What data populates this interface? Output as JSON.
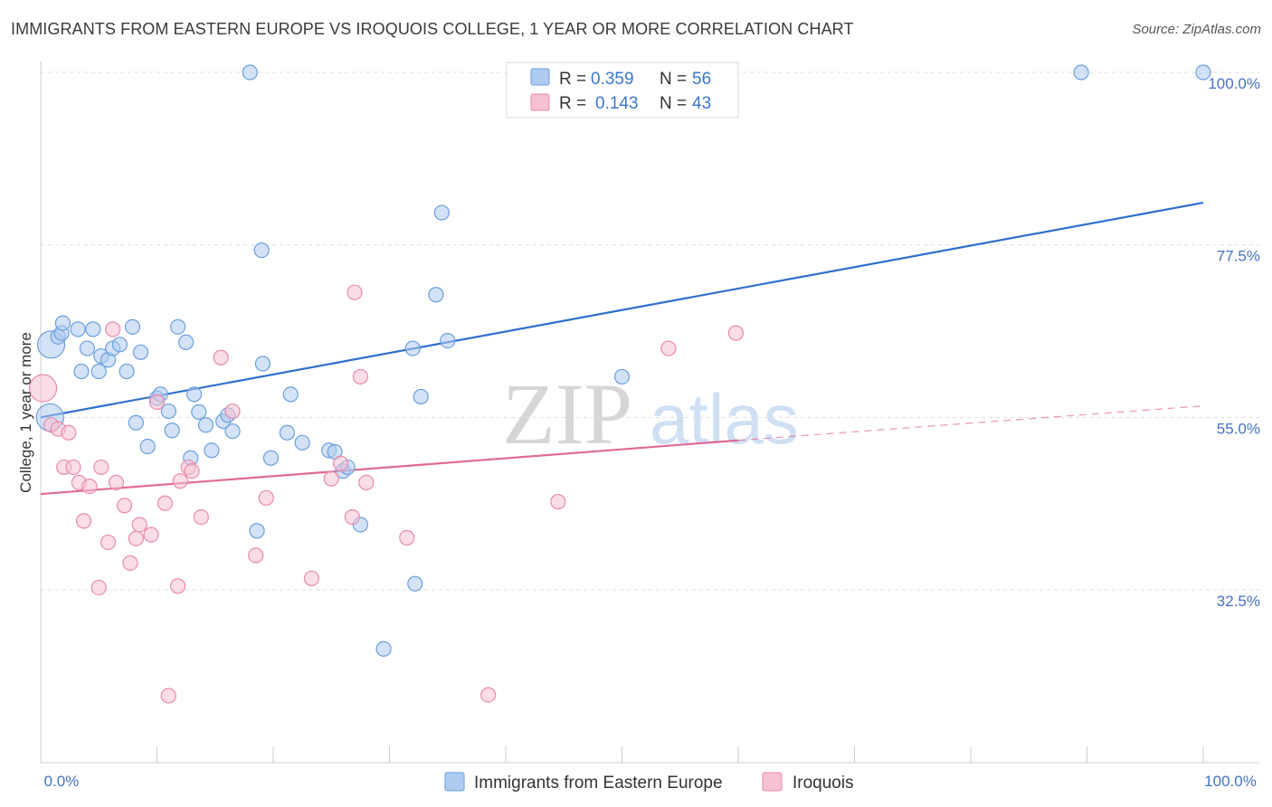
{
  "title": "IMMIGRANTS FROM EASTERN EUROPE VS IROQUOIS COLLEGE, 1 YEAR OR MORE CORRELATION CHART",
  "source": "Source: ZipAtlas.com",
  "watermark": {
    "zip": "ZIP",
    "atlas": "atlas"
  },
  "legend": {
    "r_label": "R =",
    "n_label": "N =",
    "series1": {
      "r": "0.359",
      "n": "56"
    },
    "series2": {
      "r": "0.143",
      "n": "43"
    }
  },
  "colors": {
    "blue_fill": "#aecbf0",
    "blue_stroke": "#6a9fdc",
    "blue_line": "#2f6fcc",
    "pink_fill": "#f6c1d2",
    "pink_stroke": "#e88aab",
    "pink_line": "#e06a96",
    "axis_text": "#4472c4"
  },
  "chart_data": {
    "type": "scatter",
    "title": "IMMIGRANTS FROM EASTERN EUROPE VS IROQUOIS COLLEGE, 1 YEAR OR MORE CORRELATION CHART",
    "xlabel": "",
    "ylabel": "College, 1 year or more",
    "xlim": [
      0,
      100
    ],
    "ylim": [
      12,
      102
    ],
    "x_tick_labels": [
      "0.0%",
      "100.0%"
    ],
    "y_ticks": [
      {
        "value": 32.5,
        "label": "32.5%"
      },
      {
        "value": 55.0,
        "label": "55.0%"
      },
      {
        "value": 77.5,
        "label": "77.5%"
      },
      {
        "value": 100.0,
        "label": "100.0%"
      }
    ],
    "series": [
      {
        "name": "Immigrants from Eastern Europe",
        "color": "#6a9fdc",
        "trend": {
          "x": [
            0,
            100
          ],
          "y": [
            55.0,
            83.0
          ],
          "dashed_after": null
        },
        "points": [
          {
            "x": 0.8,
            "y": 55.0,
            "big": true
          },
          {
            "x": 0.9,
            "y": 64.5,
            "big": true
          },
          {
            "x": 1.5,
            "y": 65.5
          },
          {
            "x": 1.8,
            "y": 66.0
          },
          {
            "x": 1.9,
            "y": 67.3
          },
          {
            "x": 3.2,
            "y": 66.5
          },
          {
            "x": 3.5,
            "y": 61.0
          },
          {
            "x": 4.0,
            "y": 64.0
          },
          {
            "x": 4.5,
            "y": 66.5
          },
          {
            "x": 5.0,
            "y": 61.0
          },
          {
            "x": 5.2,
            "y": 63.0
          },
          {
            "x": 5.8,
            "y": 62.5
          },
          {
            "x": 6.2,
            "y": 64.0
          },
          {
            "x": 6.8,
            "y": 64.5
          },
          {
            "x": 7.4,
            "y": 61.0
          },
          {
            "x": 7.9,
            "y": 66.8
          },
          {
            "x": 8.2,
            "y": 54.3
          },
          {
            "x": 8.6,
            "y": 63.5
          },
          {
            "x": 9.2,
            "y": 51.2
          },
          {
            "x": 10.0,
            "y": 57.5
          },
          {
            "x": 10.3,
            "y": 58.0
          },
          {
            "x": 11.0,
            "y": 55.8
          },
          {
            "x": 11.3,
            "y": 53.3
          },
          {
            "x": 11.8,
            "y": 66.8
          },
          {
            "x": 12.5,
            "y": 64.8
          },
          {
            "x": 12.9,
            "y": 49.7
          },
          {
            "x": 13.2,
            "y": 58.0
          },
          {
            "x": 13.6,
            "y": 55.7
          },
          {
            "x": 14.2,
            "y": 54.0
          },
          {
            "x": 14.7,
            "y": 50.7
          },
          {
            "x": 15.7,
            "y": 54.5
          },
          {
            "x": 16.1,
            "y": 55.3
          },
          {
            "x": 16.5,
            "y": 53.2
          },
          {
            "x": 18.0,
            "y": 100.0
          },
          {
            "x": 18.6,
            "y": 40.2
          },
          {
            "x": 19.0,
            "y": 76.8
          },
          {
            "x": 19.1,
            "y": 62.0
          },
          {
            "x": 19.8,
            "y": 49.7
          },
          {
            "x": 21.2,
            "y": 53.0
          },
          {
            "x": 21.5,
            "y": 58.0
          },
          {
            "x": 22.5,
            "y": 51.7
          },
          {
            "x": 24.8,
            "y": 50.7
          },
          {
            "x": 25.3,
            "y": 50.5
          },
          {
            "x": 26.0,
            "y": 48.0
          },
          {
            "x": 26.4,
            "y": 48.5
          },
          {
            "x": 27.5,
            "y": 41.0
          },
          {
            "x": 29.5,
            "y": 24.8
          },
          {
            "x": 32.0,
            "y": 64.0
          },
          {
            "x": 32.2,
            "y": 33.3
          },
          {
            "x": 32.7,
            "y": 57.7
          },
          {
            "x": 34.0,
            "y": 71.0
          },
          {
            "x": 34.5,
            "y": 81.7
          },
          {
            "x": 35.0,
            "y": 65.0
          },
          {
            "x": 50.0,
            "y": 60.3
          },
          {
            "x": 89.5,
            "y": 100.0
          },
          {
            "x": 100.0,
            "y": 100.0
          }
        ]
      },
      {
        "name": "Iroquois",
        "color": "#e88aab",
        "trend": {
          "x": [
            0,
            60.0,
            100
          ],
          "y": [
            45.0,
            52.0,
            56.5
          ],
          "dashed_after": 60.0
        },
        "points": [
          {
            "x": 0.2,
            "y": 58.8,
            "big": true
          },
          {
            "x": 0.9,
            "y": 54.0
          },
          {
            "x": 1.5,
            "y": 53.5
          },
          {
            "x": 2.0,
            "y": 48.5
          },
          {
            "x": 2.4,
            "y": 53.0
          },
          {
            "x": 2.8,
            "y": 48.5
          },
          {
            "x": 3.3,
            "y": 46.5
          },
          {
            "x": 3.7,
            "y": 41.5
          },
          {
            "x": 4.2,
            "y": 46.0
          },
          {
            "x": 5.0,
            "y": 32.8
          },
          {
            "x": 5.2,
            "y": 48.5
          },
          {
            "x": 5.8,
            "y": 38.7
          },
          {
            "x": 6.2,
            "y": 66.5
          },
          {
            "x": 6.5,
            "y": 46.5
          },
          {
            "x": 7.2,
            "y": 43.5
          },
          {
            "x": 7.7,
            "y": 36.0
          },
          {
            "x": 8.2,
            "y": 39.2
          },
          {
            "x": 8.5,
            "y": 41.0
          },
          {
            "x": 9.5,
            "y": 39.7
          },
          {
            "x": 10.0,
            "y": 57.0
          },
          {
            "x": 10.7,
            "y": 43.8
          },
          {
            "x": 11.0,
            "y": 18.7
          },
          {
            "x": 11.8,
            "y": 33.0
          },
          {
            "x": 12.0,
            "y": 46.7
          },
          {
            "x": 12.7,
            "y": 48.5
          },
          {
            "x": 13.0,
            "y": 48.0
          },
          {
            "x": 13.8,
            "y": 42.0
          },
          {
            "x": 15.5,
            "y": 62.8
          },
          {
            "x": 16.5,
            "y": 55.8
          },
          {
            "x": 18.5,
            "y": 37.0
          },
          {
            "x": 19.4,
            "y": 44.5
          },
          {
            "x": 23.3,
            "y": 34.0
          },
          {
            "x": 25.0,
            "y": 47.0
          },
          {
            "x": 25.8,
            "y": 49.0
          },
          {
            "x": 26.8,
            "y": 42.0
          },
          {
            "x": 27.0,
            "y": 71.3
          },
          {
            "x": 27.5,
            "y": 60.3
          },
          {
            "x": 28.0,
            "y": 46.5
          },
          {
            "x": 31.5,
            "y": 39.3
          },
          {
            "x": 38.5,
            "y": 18.8
          },
          {
            "x": 44.5,
            "y": 44.0
          },
          {
            "x": 54.0,
            "y": 64.0
          },
          {
            "x": 59.8,
            "y": 66.0
          }
        ]
      }
    ]
  }
}
